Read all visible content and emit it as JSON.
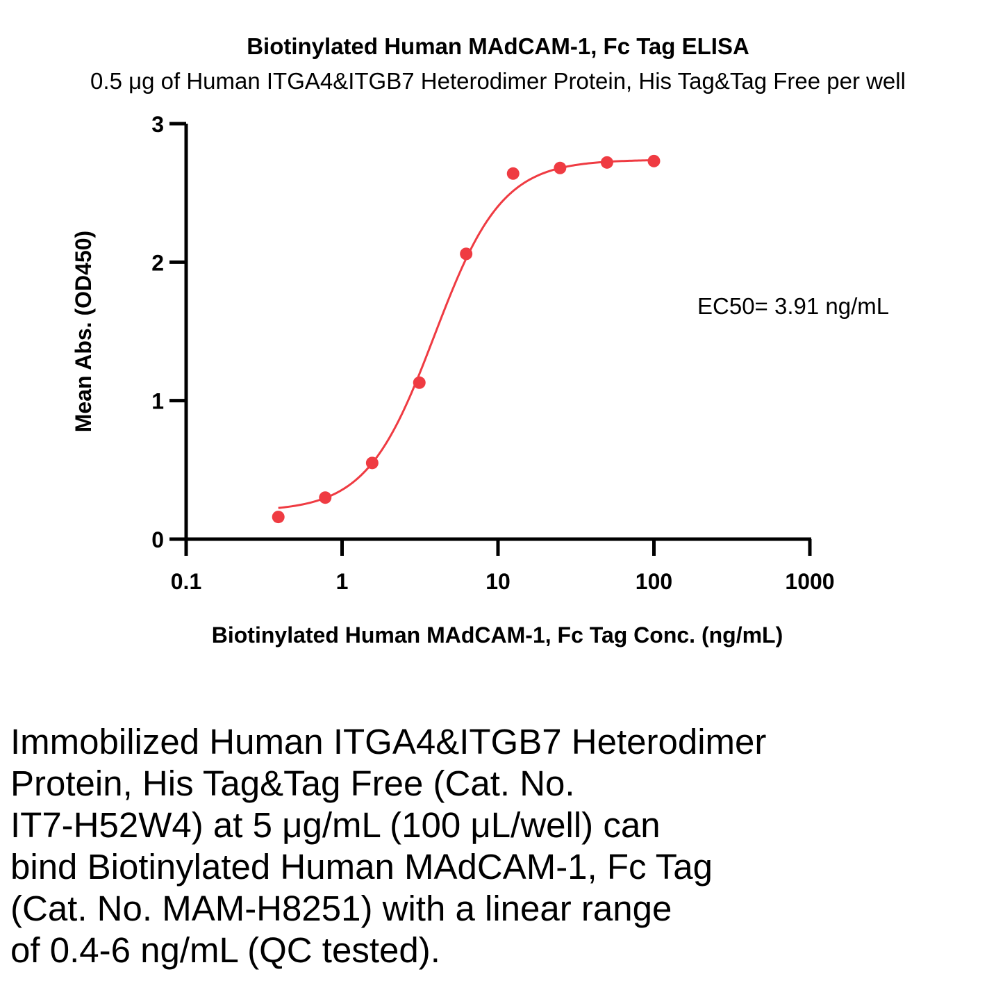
{
  "chart_data": {
    "type": "scatter",
    "title": "Biotinylated Human MAdCAM-1, Fc Tag ELISA",
    "subtitle": "0.5 μg of Human ITGA4&ITGB7 Heterodimer Protein, His Tag&Tag Free per well",
    "xlabel": "Biotinylated Human MAdCAM-1, Fc Tag Conc. (ng/mL)",
    "ylabel": "Mean Abs. (OD450)",
    "xscale": "log",
    "xlim": [
      0.1,
      1000
    ],
    "ylim": [
      0,
      3
    ],
    "xticks": [
      "0.1",
      "1",
      "10",
      "100",
      "1000"
    ],
    "xtick_values": [
      0.1,
      1,
      10,
      100,
      1000
    ],
    "yticks": [
      "0",
      "1",
      "2",
      "3"
    ],
    "ytick_values": [
      0,
      1,
      2,
      3
    ],
    "grid": false,
    "color": "#ef3b42",
    "series": [
      {
        "x": [
          0.39,
          0.78,
          1.56,
          3.13,
          6.25,
          12.5,
          25,
          50,
          100
        ],
        "y": [
          0.16,
          0.3,
          0.55,
          1.13,
          2.06,
          2.64,
          2.68,
          2.72,
          2.73
        ]
      }
    ],
    "fit": {
      "model": "4PL",
      "bottom": 0.2,
      "top": 2.74,
      "ec50": 3.91,
      "hill": 2.0
    },
    "annotation": "EC50= 3.91 ng/mL"
  },
  "caption": [
    "Immobilized Human ITGA4&ITGB7 Heterodimer",
    "Protein, His Tag&Tag Free (Cat. No.",
    "IT7-H52W4) at 5 μg/mL (100 μL/well) can",
    "bind Biotinylated Human MAdCAM-1, Fc Tag",
    "(Cat. No. MAM-H8251) with a linear range",
    "of 0.4-6 ng/mL (QC tested)."
  ]
}
